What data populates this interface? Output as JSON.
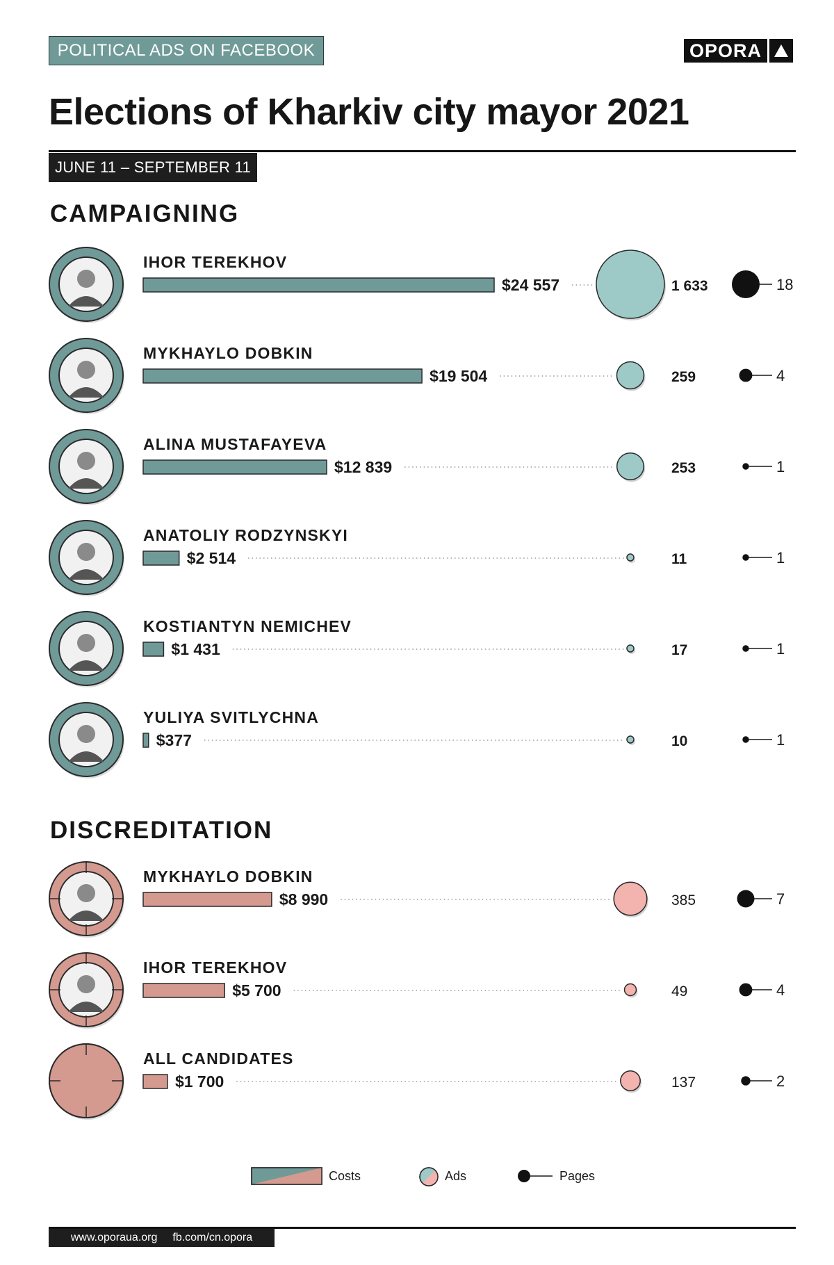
{
  "header": {
    "tag": "POLITICAL ADS ON FACEBOOK",
    "logo": "OPORA",
    "title": "Elections of Kharkiv city mayor 2021",
    "date_range": "JUNE 11 – SEPTEMBER 11"
  },
  "sections": {
    "campaigning": "CAMPAIGNING",
    "discreditation": "DISCREDITATION"
  },
  "legend": {
    "costs": "Costs",
    "ads": "Ads",
    "pages": "Pages"
  },
  "footer": {
    "site": "www.oporaua.org",
    "fb": "fb.com/cn.opora"
  },
  "colors": {
    "campaign": "#6f9a98",
    "campaign_ads": "#9dcac7",
    "discredit": "#d49a90",
    "discredit_ads": "#f3b3ae",
    "ink": "#111111"
  },
  "chart_data": {
    "type": "bar",
    "x_unit": "USD",
    "series": [
      {
        "name": "Costs",
        "values": [
          24557,
          19504,
          12839,
          2514,
          1431,
          377,
          8990,
          5700,
          1700
        ]
      },
      {
        "name": "Ads",
        "values": [
          1633,
          259,
          253,
          11,
          17,
          10,
          385,
          49,
          137
        ]
      },
      {
        "name": "Pages",
        "values": [
          18,
          4,
          1,
          1,
          1,
          1,
          7,
          4,
          2
        ]
      }
    ],
    "rows": [
      {
        "group": "campaigning",
        "name": "IHOR TEREKHOV",
        "cost": 24557,
        "cost_label": "$24 557",
        "ads": 1633,
        "ads_label": "1 633",
        "pages": 18,
        "pages_label": "18"
      },
      {
        "group": "campaigning",
        "name": "MYKHAYLO DOBKIN",
        "cost": 19504,
        "cost_label": "$19 504",
        "ads": 259,
        "ads_label": "259",
        "pages": 4,
        "pages_label": "4"
      },
      {
        "group": "campaigning",
        "name": "ALINA MUSTAFAYEVA",
        "cost": 12839,
        "cost_label": "$12 839",
        "ads": 253,
        "ads_label": "253",
        "pages": 1,
        "pages_label": "1"
      },
      {
        "group": "campaigning",
        "name": "ANATOLIY RODZYNSKYI",
        "cost": 2514,
        "cost_label": "$2 514",
        "ads": 11,
        "ads_label": "11",
        "pages": 1,
        "pages_label": "1"
      },
      {
        "group": "campaigning",
        "name": "KOSTIANTYN NEMICHEV",
        "cost": 1431,
        "cost_label": "$1 431",
        "ads": 17,
        "ads_label": "17",
        "pages": 1,
        "pages_label": "1"
      },
      {
        "group": "campaigning",
        "name": "YULIYA SVITLYCHNA",
        "cost": 377,
        "cost_label": "$377",
        "ads": 10,
        "ads_label": "10",
        "pages": 1,
        "pages_label": "1"
      },
      {
        "group": "discreditation",
        "name": "MYKHAYLO DOBKIN",
        "cost": 8990,
        "cost_label": "$8 990",
        "ads": 385,
        "ads_label": "385",
        "pages": 7,
        "pages_label": "7"
      },
      {
        "group": "discreditation",
        "name": "IHOR TEREKHOV",
        "cost": 5700,
        "cost_label": "$5 700",
        "ads": 49,
        "ads_label": "49",
        "pages": 4,
        "pages_label": "4"
      },
      {
        "group": "discreditation",
        "name": "ALL CANDIDATES",
        "cost": 1700,
        "cost_label": "$1 700",
        "ads": 137,
        "ads_label": "137",
        "pages": 2,
        "pages_label": "2"
      }
    ]
  }
}
